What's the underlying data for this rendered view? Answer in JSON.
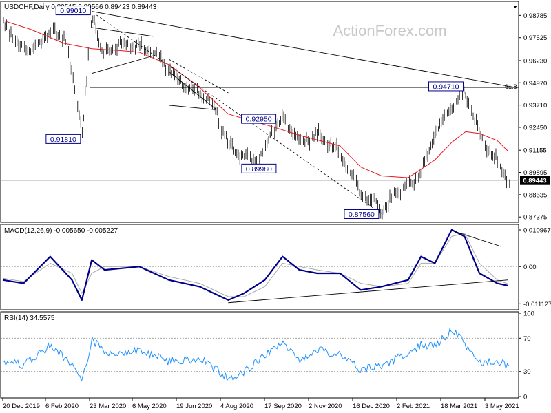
{
  "watermark": "ActionForex.com",
  "colors": {
    "price": "#000000",
    "ma": "#e8141c",
    "macd": "#00008b",
    "signal": "#a8a8a8",
    "rsi": "#1e90ff",
    "grid": "#999999",
    "label_border": "#00008b",
    "label_text": "#00008b"
  },
  "chart_data": [
    {
      "type": "line",
      "panel": "price",
      "legend": "USDCHF,Daily  0.89515 0.89566 0.89423 0.89443",
      "last_value_label": "0.89443",
      "ylim": [
        0.8715,
        0.995
      ],
      "y_ticks": [
        "0.98785",
        "0.97525",
        "0.96230",
        "0.94970",
        "0.93710",
        "0.92450",
        "0.91155",
        "0.89895",
        "0.88635",
        "0.87375"
      ],
      "y_tick_values": [
        0.98785,
        0.97525,
        0.9623,
        0.9497,
        0.9371,
        0.9245,
        0.91155,
        0.89895,
        0.88635,
        0.87375
      ],
      "x_ticks": [
        "20 Dec 2019",
        "6 Feb 2020",
        "23 Mar 2020",
        "6 May 2020",
        "19 Jun 2020",
        "4 Aug 2020",
        "17 Sep 2020",
        "2 Nov 2020",
        "16 Dec 2020",
        "2 Feb 2021",
        "18 Mar 2021",
        "3 May 2021"
      ],
      "fib_label": "61.8",
      "fib_level": 0.947,
      "series": [
        {
          "name": "USDCHF,Daily",
          "role": "close",
          "x": [
            "2019-12-20",
            "2020-01-03",
            "2020-01-17",
            "2020-02-06",
            "2020-02-20",
            "2020-03-09",
            "2020-03-19",
            "2020-03-30",
            "2020-04-15",
            "2020-05-06",
            "2020-05-20",
            "2020-06-05",
            "2020-06-19",
            "2020-07-06",
            "2020-07-20",
            "2020-08-04",
            "2020-08-14",
            "2020-08-28",
            "2020-09-10",
            "2020-09-17",
            "2020-09-28",
            "2020-10-15",
            "2020-11-02",
            "2020-11-10",
            "2020-11-25",
            "2020-12-16",
            "2020-12-31",
            "2021-01-06",
            "2021-01-20",
            "2021-02-02",
            "2021-02-15",
            "2021-03-01",
            "2021-03-18",
            "2021-03-31",
            "2021-04-15",
            "2021-05-03",
            "2021-05-14"
          ],
          "values": [
            0.985,
            0.972,
            0.968,
            0.979,
            0.976,
            0.924,
            0.989,
            0.965,
            0.972,
            0.97,
            0.967,
            0.957,
            0.948,
            0.944,
            0.937,
            0.914,
            0.91,
            0.905,
            0.912,
            0.923,
            0.929,
            0.915,
            0.921,
            0.918,
            0.91,
            0.886,
            0.883,
            0.876,
            0.887,
            0.891,
            0.9,
            0.921,
            0.936,
            0.945,
            0.92,
            0.905,
            0.8944
          ]
        },
        {
          "name": "MA",
          "role": "moving-average",
          "x": [
            "2019-12-20",
            "2020-01-17",
            "2020-02-20",
            "2020-03-19",
            "2020-04-15",
            "2020-05-06",
            "2020-06-05",
            "2020-07-06",
            "2020-08-04",
            "2020-09-17",
            "2020-10-15",
            "2020-11-25",
            "2020-12-16",
            "2021-01-06",
            "2021-02-02",
            "2021-03-01",
            "2021-03-18",
            "2021-04-01",
            "2021-04-15",
            "2021-05-03",
            "2021-05-14"
          ],
          "values": [
            0.985,
            0.98,
            0.972,
            0.969,
            0.968,
            0.967,
            0.96,
            0.947,
            0.932,
            0.925,
            0.92,
            0.914,
            0.902,
            0.897,
            0.896,
            0.906,
            0.916,
            0.922,
            0.921,
            0.917,
            0.911
          ]
        }
      ],
      "annotations": [
        {
          "text": "0.99010",
          "date": "2020-03-19",
          "value": 0.9901
        },
        {
          "text": "0.91810",
          "date": "2020-03-09",
          "value": 0.9181
        },
        {
          "text": "0.92950",
          "date": "2020-09-24",
          "value": 0.9295
        },
        {
          "text": "0.89980",
          "date": "2020-08-19",
          "value": 0.8998
        },
        {
          "text": "0.87560",
          "date": "2021-01-06",
          "value": 0.8756
        },
        {
          "text": "0.94710",
          "date": "2021-03-31",
          "value": 0.9471
        }
      ],
      "trendlines": [
        {
          "style": "solid",
          "from": [
            "2020-03-19",
            0.9901
          ],
          "to": [
            "2021-05-22",
            0.947
          ]
        },
        {
          "style": "solid",
          "from": [
            "2020-03-19",
            0.981
          ],
          "to": [
            "2020-05-20",
            0.976
          ]
        },
        {
          "style": "solid",
          "from": [
            "2020-03-19",
            0.955
          ],
          "to": [
            "2020-05-20",
            0.965
          ]
        },
        {
          "style": "solid",
          "from": [
            "2020-06-05",
            0.956
          ],
          "to": [
            "2020-07-22",
            0.935
          ]
        },
        {
          "style": "solid",
          "from": [
            "2020-06-05",
            0.937
          ],
          "to": [
            "2020-07-22",
            0.9345
          ]
        },
        {
          "style": "dashed",
          "from": [
            "2020-03-24",
            0.988
          ],
          "to": [
            "2021-01-06",
            0.8756
          ]
        },
        {
          "style": "dashed",
          "from": [
            "2020-06-05",
            0.963
          ],
          "to": [
            "2020-08-04",
            0.944
          ]
        }
      ]
    },
    {
      "type": "line",
      "panel": "macd",
      "legend": "MACD(12,26,9) -0.005650 -0.005227",
      "ylim": [
        -0.0125,
        0.0122
      ],
      "y_ticks": [
        "0.010967",
        "0.00",
        "-0.011127"
      ],
      "y_tick_values": [
        0.010967,
        0.0,
        -0.011127
      ],
      "series": [
        {
          "name": "MACD",
          "role": "macd",
          "x": [
            "2019-12-20",
            "2020-01-10",
            "2020-02-06",
            "2020-02-28",
            "2020-03-09",
            "2020-03-19",
            "2020-04-01",
            "2020-05-06",
            "2020-06-05",
            "2020-07-06",
            "2020-08-04",
            "2020-08-20",
            "2020-09-10",
            "2020-09-28",
            "2020-10-15",
            "2020-11-02",
            "2020-11-25",
            "2020-12-16",
            "2021-01-06",
            "2021-02-02",
            "2021-02-15",
            "2021-03-01",
            "2021-03-18",
            "2021-03-31",
            "2021-04-15",
            "2021-05-03",
            "2021-05-14"
          ],
          "values": [
            -0.004,
            -0.005,
            0.003,
            -0.004,
            -0.01,
            0.002,
            -0.001,
            0.0,
            -0.004,
            -0.006,
            -0.01,
            -0.008,
            -0.004,
            0.003,
            -0.001,
            -0.002,
            -0.002,
            -0.007,
            -0.006,
            -0.004,
            0.003,
            0.001,
            0.011,
            0.009,
            -0.002,
            -0.005,
            -0.0057
          ]
        },
        {
          "name": "Signal",
          "role": "signal",
          "x": [
            "2019-12-20",
            "2020-01-10",
            "2020-02-06",
            "2020-02-28",
            "2020-03-09",
            "2020-03-19",
            "2020-04-01",
            "2020-05-06",
            "2020-06-05",
            "2020-07-06",
            "2020-08-04",
            "2020-08-20",
            "2020-09-10",
            "2020-09-28",
            "2020-10-15",
            "2020-11-02",
            "2020-11-25",
            "2020-12-16",
            "2021-01-06",
            "2021-02-02",
            "2021-02-15",
            "2021-03-01",
            "2021-03-18",
            "2021-03-31",
            "2021-04-15",
            "2021-05-03",
            "2021-05-14"
          ],
          "values": [
            -0.0035,
            -0.0045,
            0.001,
            -0.002,
            -0.008,
            -0.002,
            0.0,
            0.0,
            -0.003,
            -0.005,
            -0.009,
            -0.009,
            -0.006,
            0.001,
            0.0,
            -0.001,
            -0.002,
            -0.005,
            -0.006,
            -0.005,
            0.001,
            0.001,
            0.009,
            0.01,
            0.001,
            -0.004,
            -0.0052
          ]
        }
      ],
      "trendlines": [
        {
          "style": "solid",
          "from": [
            "2020-08-04",
            -0.0108
          ],
          "to": [
            "2021-05-14",
            -0.004
          ]
        },
        {
          "style": "solid",
          "from": [
            "2021-03-18",
            0.0108
          ],
          "to": [
            "2021-05-07",
            0.006
          ]
        }
      ]
    },
    {
      "type": "line",
      "panel": "rsi",
      "legend": "RSI(14) 34.5575",
      "ylim": [
        0,
        100
      ],
      "y_ticks": [
        "100",
        "70",
        "30",
        "0"
      ],
      "y_tick_values": [
        100,
        70,
        30,
        0
      ],
      "guide_levels": [
        70,
        30
      ],
      "series": [
        {
          "name": "RSI(14)",
          "role": "rsi",
          "x": [
            "2019-12-20",
            "2020-01-10",
            "2020-02-06",
            "2020-02-28",
            "2020-03-09",
            "2020-03-19",
            "2020-04-01",
            "2020-05-06",
            "2020-06-05",
            "2020-07-06",
            "2020-08-04",
            "2020-08-20",
            "2020-09-10",
            "2020-09-28",
            "2020-10-15",
            "2020-11-02",
            "2020-11-25",
            "2020-12-16",
            "2021-01-06",
            "2021-02-02",
            "2021-02-15",
            "2021-03-01",
            "2021-03-18",
            "2021-03-31",
            "2021-04-15",
            "2021-05-03",
            "2021-05-14"
          ],
          "values": [
            40,
            38,
            62,
            38,
            20,
            68,
            52,
            55,
            42,
            45,
            22,
            30,
            50,
            62,
            44,
            56,
            50,
            32,
            36,
            54,
            62,
            60,
            82,
            62,
            40,
            44,
            34.6
          ]
        }
      ]
    }
  ]
}
